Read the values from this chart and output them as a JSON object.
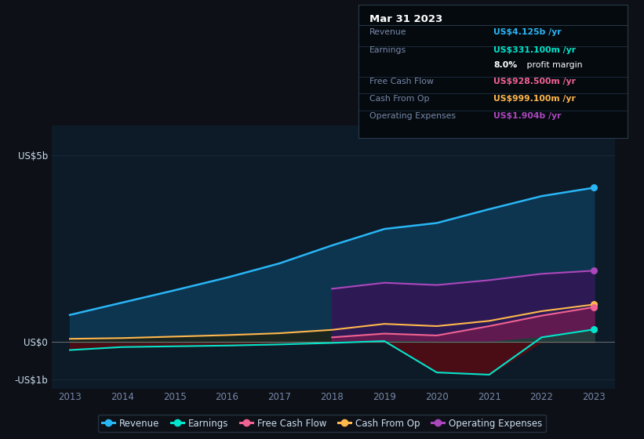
{
  "background_color": "#0d1117",
  "plot_bg_color": "#0d1a27",
  "years": [
    2013,
    2014,
    2015,
    2016,
    2017,
    2018,
    2019,
    2020,
    2021,
    2022,
    2023
  ],
  "revenue": [
    0.72,
    1.05,
    1.38,
    1.72,
    2.1,
    2.58,
    3.02,
    3.18,
    3.55,
    3.9,
    4.125
  ],
  "earnings": [
    -0.22,
    -0.14,
    -0.12,
    -0.1,
    -0.07,
    -0.03,
    0.02,
    -0.82,
    -0.88,
    0.12,
    0.331
  ],
  "cash_from_op": [
    0.08,
    0.1,
    0.14,
    0.18,
    0.23,
    0.32,
    0.48,
    0.42,
    0.56,
    0.82,
    0.999
  ],
  "fcf_years": [
    2018,
    2019,
    2020,
    2021,
    2022,
    2023
  ],
  "free_cash_flow": [
    0.12,
    0.22,
    0.17,
    0.42,
    0.7,
    0.9285
  ],
  "operating_expenses": [
    1.42,
    1.58,
    1.52,
    1.65,
    1.82,
    1.904
  ],
  "revenue_color": "#29b6f6",
  "earnings_color": "#00e5cc",
  "fcf_color": "#f06292",
  "cashop_color": "#ffb74d",
  "opex_color": "#ab47bc",
  "revenue_fill": "#0d3550",
  "cashop_fill": "#1a2520",
  "opex_fill": "#2d1a55",
  "fcf_fill": "#6b1a50",
  "earnings_neg_fill": "#4a0d15",
  "earnings_pos_fill": "#0d4a35",
  "zero_line_color": "#aaaaaa",
  "grid_color": "#1e2e3e",
  "text_color": "#7788aa",
  "label_color": "#ccddee",
  "ylim_min": -1.25,
  "ylim_max": 5.8,
  "legend_items": [
    {
      "label": "Revenue",
      "color": "#29b6f6"
    },
    {
      "label": "Earnings",
      "color": "#00e5cc"
    },
    {
      "label": "Free Cash Flow",
      "color": "#f06292"
    },
    {
      "label": "Cash From Op",
      "color": "#ffb74d"
    },
    {
      "label": "Operating Expenses",
      "color": "#ab47bc"
    }
  ],
  "tooltip_bg": "#050a0f",
  "tooltip_border": "#2a3a4a",
  "tooltip_title": "Mar 31 2023",
  "tooltip_rows": [
    {
      "label": "Revenue",
      "value": "US$4.125b /yr",
      "color": "#29b6f6"
    },
    {
      "label": "Earnings",
      "value": "US$331.100m /yr",
      "color": "#00e5cc"
    },
    {
      "label": "",
      "value": "8.0%",
      "suffix": " profit margin",
      "color": "#ffffff"
    },
    {
      "label": "Free Cash Flow",
      "value": "US$928.500m /yr",
      "color": "#f06292"
    },
    {
      "label": "Cash From Op",
      "value": "US$999.100m /yr",
      "color": "#ffb74d"
    },
    {
      "label": "Operating Expenses",
      "value": "US$1.904b /yr",
      "color": "#ab47bc"
    }
  ]
}
